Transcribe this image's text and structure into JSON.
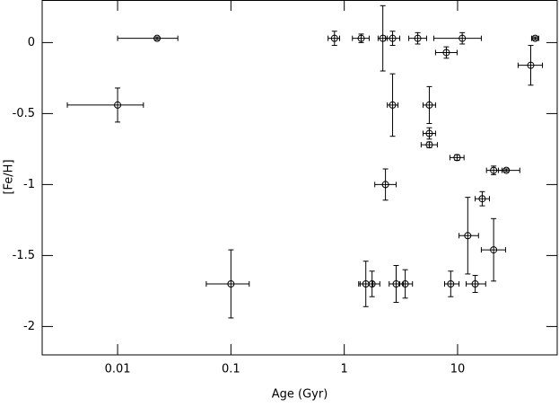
{
  "chart_data": {
    "type": "scatter",
    "xlabel": "Age (Gyr)",
    "ylabel": "[Fe/H]",
    "xscale": "log",
    "color": "#000000",
    "xlim": [
      0.00216,
      75.7
    ],
    "ylim": [
      -2.2,
      0.3
    ],
    "xticks": [
      0.01,
      0.1,
      1,
      10
    ],
    "yticks": [
      0,
      -0.5,
      -1,
      -1.5,
      -2
    ],
    "series": [
      {
        "name": null,
        "x": [
          0.0223,
          0.01,
          0.1,
          0.82,
          1.41,
          2.19,
          2.67,
          4.45,
          11.0,
          7.96,
          44.2,
          48.4,
          2.67,
          5.63,
          5.63,
          5.63,
          9.9,
          20.8,
          26.9,
          2.31,
          16.5,
          12.3,
          20.8,
          1.55,
          1.76,
          2.87,
          3.45,
          8.7,
          14.3
        ],
        "values": [
          0.03,
          -0.44,
          -1.7,
          0.03,
          0.03,
          0.03,
          0.03,
          0.03,
          0.03,
          -0.07,
          -0.16,
          0.03,
          -0.44,
          -0.44,
          -0.64,
          -0.72,
          -0.81,
          -0.9,
          -0.9,
          -1.0,
          -1.1,
          -1.36,
          -1.46,
          -1.7,
          -1.7,
          -1.7,
          -1.7,
          -1.7,
          -1.7
        ],
        "x_low": [
          0.01,
          0.0036,
          0.0606,
          0.72,
          1.18,
          1.99,
          2.31,
          3.71,
          6.17,
          6.39,
          34.2,
          45,
          2.4,
          4.96,
          4.96,
          4.77,
          8.56,
          18.0,
          22.9,
          1.86,
          14.3,
          10.3,
          16.2,
          1.34,
          1.38,
          2.49,
          3.09,
          7.68,
          11.9
        ],
        "x_high": [
          0.034,
          0.0169,
          0.145,
          0.91,
          1.66,
          2.4,
          3.09,
          5.33,
          16.2,
          9.9,
          56.1,
          52,
          2.98,
          6.39,
          6.39,
          6.63,
          11.4,
          24.7,
          35.4,
          2.87,
          19.1,
          15.3,
          26.5,
          1.79,
          2.06,
          3.32,
          4.0,
          10.3,
          17.7
        ],
        "yerr": [
          0.01,
          0.12,
          0.24,
          0.05,
          0.03,
          0.23,
          0.05,
          0.04,
          0.04,
          0.04,
          0.14,
          0.01,
          0.22,
          0.13,
          0.04,
          0.02,
          0.02,
          0.03,
          0.01,
          0.11,
          0.05,
          0.27,
          0.22,
          0.16,
          0.09,
          0.13,
          0.1,
          0.09,
          0.06
        ]
      }
    ]
  }
}
